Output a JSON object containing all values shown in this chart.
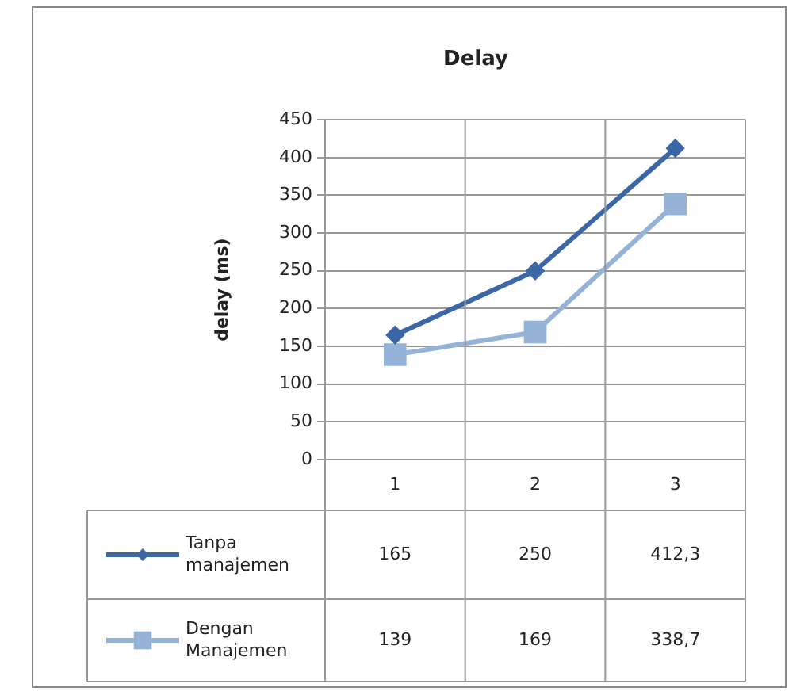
{
  "chart_data": {
    "type": "line",
    "title": "Delay",
    "ylabel": "delay (ms)",
    "categories": [
      "1",
      "2",
      "3"
    ],
    "ylim": [
      0,
      450
    ],
    "yticks": [
      0,
      50,
      100,
      150,
      200,
      250,
      300,
      350,
      400,
      450
    ],
    "grid": true,
    "legend": "bottom left",
    "series": [
      {
        "name": "Tanpa manajemen",
        "color": "#3b67a6",
        "marker": "diamond",
        "values": [
          165,
          250,
          412.3
        ],
        "value_labels": [
          "165",
          "250",
          "412,3"
        ]
      },
      {
        "name": "Dengan Manajemen",
        "color": "#95b3d7",
        "marker": "square",
        "values": [
          139,
          169,
          338.7
        ],
        "value_labels": [
          "139",
          "169",
          "338,7"
        ]
      }
    ]
  }
}
